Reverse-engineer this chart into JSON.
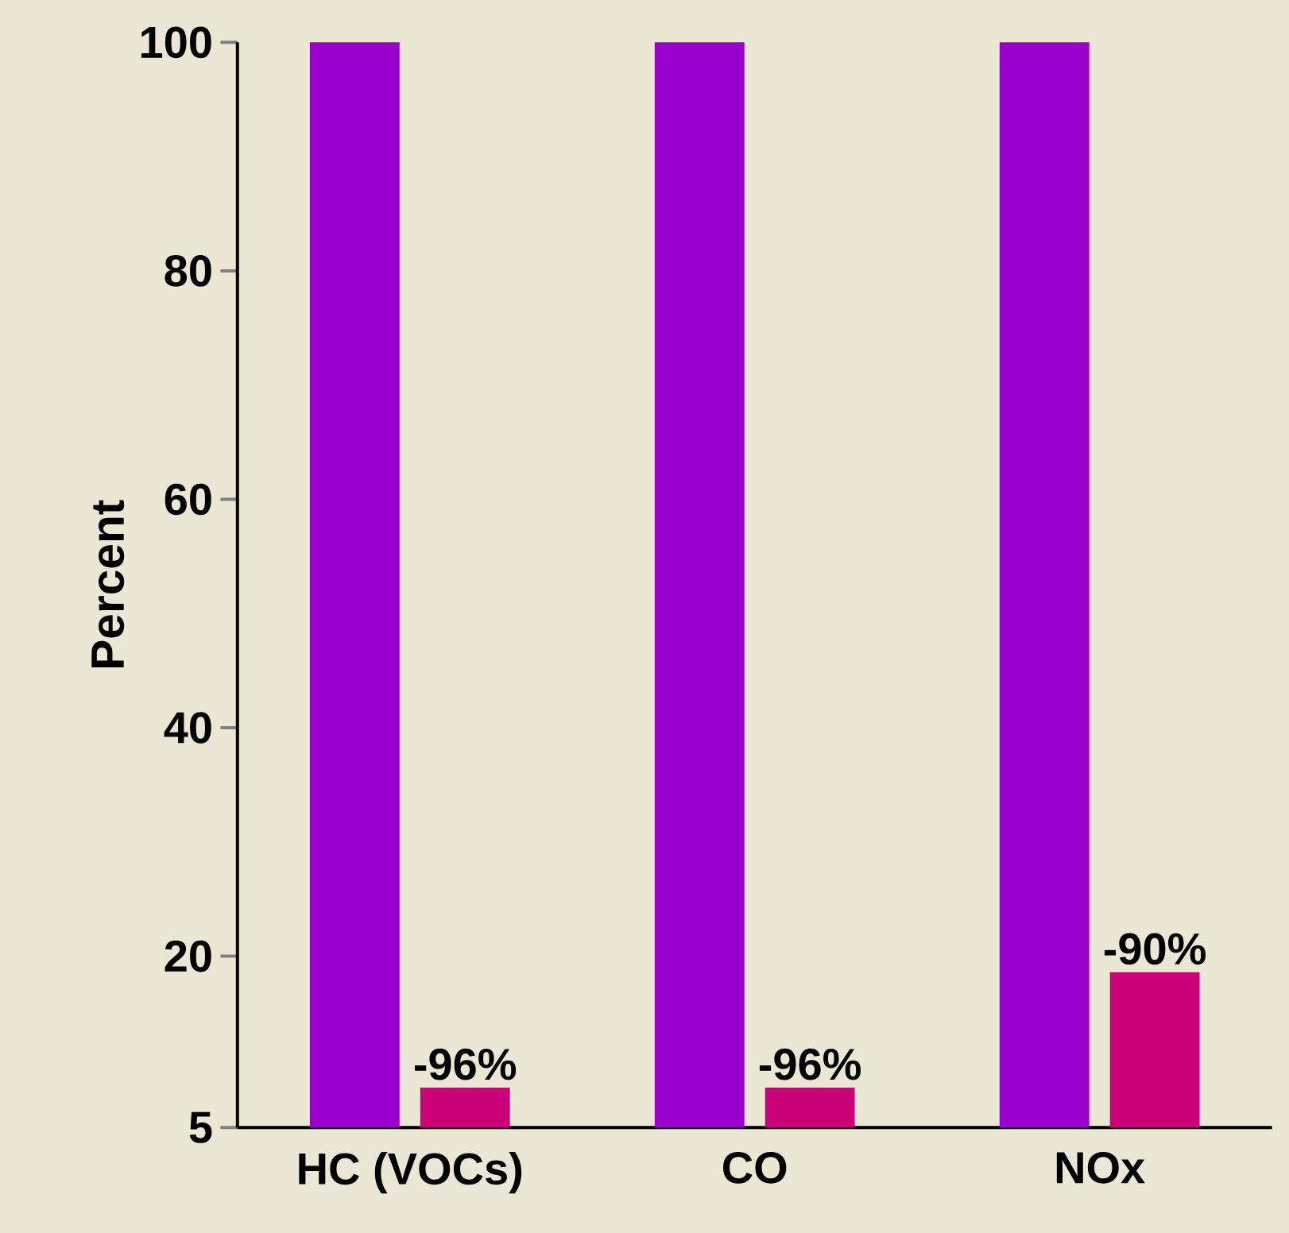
{
  "chart_data": {
    "type": "bar",
    "ylabel": "Percent",
    "categories": [
      "HC (VOCs)",
      "CO",
      "NOx"
    ],
    "series": [
      {
        "color": "#9900cc",
        "values": [
          100,
          100,
          100
        ]
      },
      {
        "color": "#cc0077",
        "values": [
          8.5,
          8.5,
          18.6
        ]
      }
    ],
    "annotations": [
      "-96%",
      "-96%",
      "-90%"
    ],
    "ylim": [
      5,
      100
    ],
    "yticks": [
      5,
      20,
      40,
      60,
      80,
      100
    ],
    "grid": false
  }
}
